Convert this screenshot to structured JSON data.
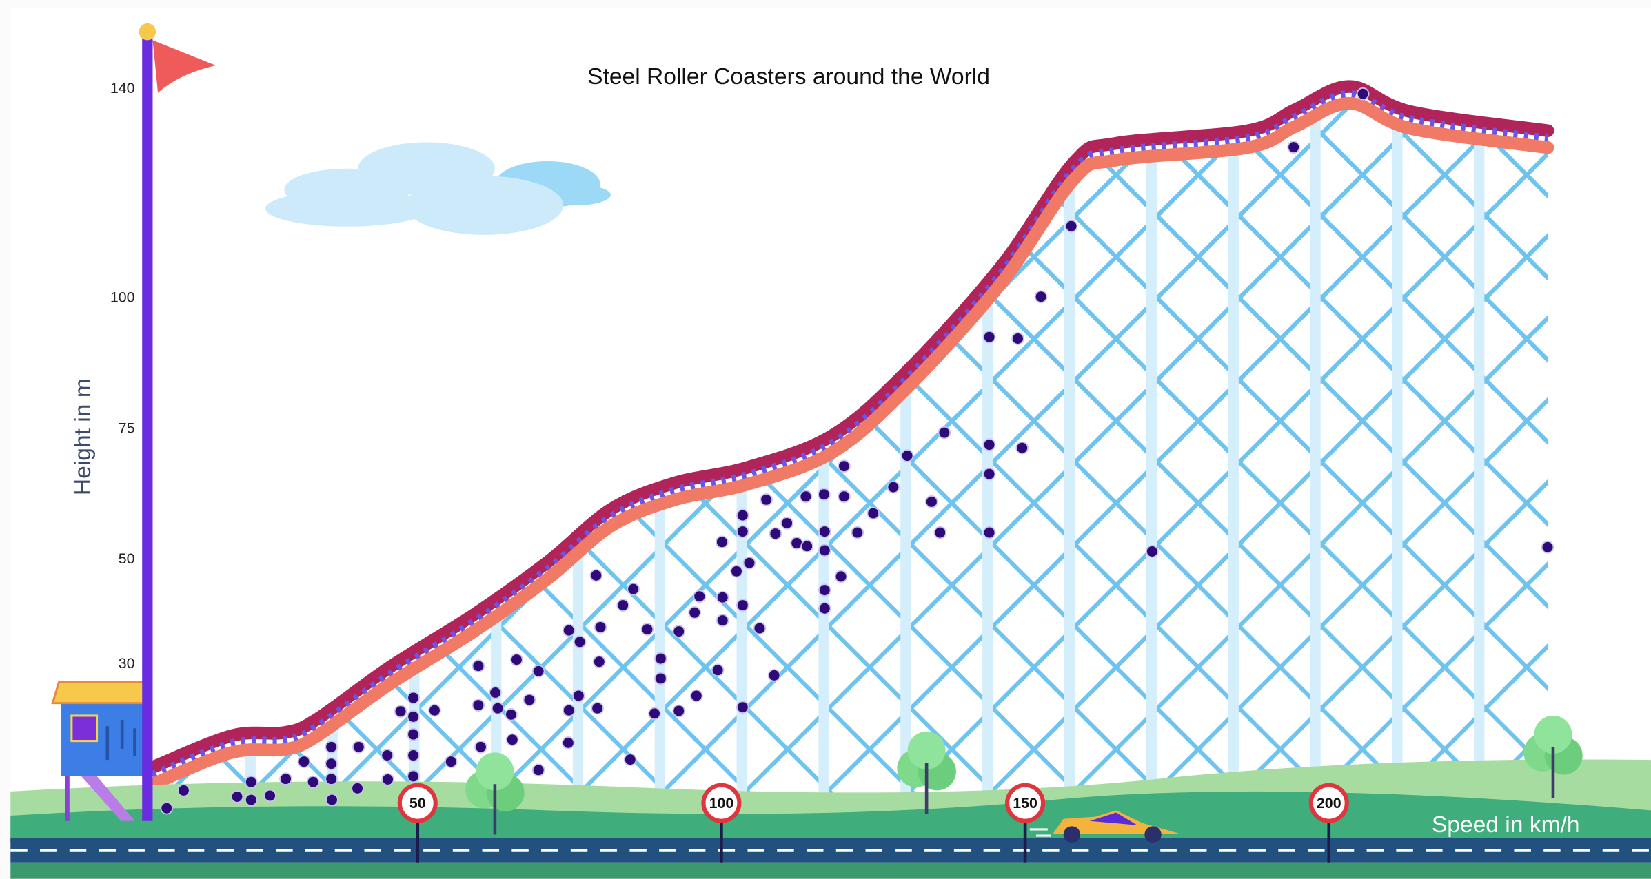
{
  "chart_data": {
    "type": "scatter",
    "title": "Steel Roller Coasters around the World",
    "x_label": "Speed in km/h",
    "y_label": "Height in m",
    "x": [
      8.7,
      11.5,
      20.3,
      22.6,
      22.6,
      25.7,
      28.3,
      31.3,
      32.8,
      35.8,
      35.8,
      35.8,
      35.9,
      40.1,
      40.3,
      45.0,
      45.1,
      47.2,
      49.3,
      49.3,
      49.3,
      49.3,
      49.3,
      52.8,
      55.5,
      60.0,
      60.0,
      60.4,
      62.8,
      63.2,
      65.4,
      65.6,
      66.3,
      68.4,
      69.9,
      69.9,
      74.8,
      74.9,
      74.9,
      76.5,
      76.7,
      79.4,
      79.6,
      79.9,
      80.1,
      83.8,
      85.5,
      85.0,
      87.8,
      89.0,
      90.0,
      90.0,
      93.0,
      93.0,
      95.6,
      95.9,
      96.4,
      99.4,
      100.1,
      100.2,
      100.2,
      102.5,
      103.5,
      103.5,
      103.5,
      103.5,
      104.6,
      106.3,
      107.4,
      108.7,
      108.9,
      110.8,
      112.4,
      113.9,
      114.1,
      116.9,
      117.0,
      117.0,
      117.0,
      117.0,
      119.7,
      120.2,
      120.2,
      122.4,
      125.0,
      128.3,
      130.6,
      134.6,
      136.0,
      136.7,
      144.1,
      144.1,
      144.1,
      144.1,
      148.8,
      149.5,
      152.6,
      157.6,
      170.9,
      194.2,
      205.6,
      236.0
    ],
    "values": [
      2.5,
      5.9,
      4.7,
      4.1,
      7.5,
      4.9,
      8.1,
      11.4,
      7.5,
      14.2,
      11.0,
      8.1,
      4.1,
      6.3,
      14.2,
      12.6,
      8.0,
      21.0,
      23.6,
      20.0,
      16.6,
      12.6,
      8.6,
      21.2,
      11.4,
      29.7,
      22.2,
      14.2,
      24.6,
      21.6,
      20.4,
      15.6,
      30.9,
      23.2,
      28.7,
      9.8,
      15.0,
      21.2,
      36.5,
      24.0,
      34.3,
      47.0,
      21.6,
      30.5,
      37.1,
      41.3,
      44.4,
      11.8,
      36.7,
      20.6,
      31.1,
      27.3,
      21.1,
      36.3,
      39.9,
      24.0,
      43.0,
      28.9,
      53.4,
      38.4,
      42.8,
      47.8,
      58.5,
      55.4,
      41.3,
      21.8,
      49.4,
      36.9,
      61.5,
      27.9,
      55.0,
      57.0,
      53.2,
      62.1,
      52.6,
      62.5,
      55.4,
      51.8,
      44.2,
      40.7,
      46.8,
      67.9,
      62.1,
      55.2,
      58.9,
      63.9,
      69.9,
      61.1,
      55.2,
      74.3,
      92.6,
      72.0,
      66.4,
      55.2,
      92.3,
      71.4,
      100.3,
      113.8,
      51.6,
      128.9,
      139.1,
      52.4
    ],
    "color": "#2e0a78",
    "xlim": [
      -17,
      250
    ],
    "ylim": [
      -11,
      157
    ],
    "xticks": [
      50,
      100,
      150,
      200
    ],
    "yticks": [
      30,
      50,
      75,
      100,
      140
    ]
  }
}
